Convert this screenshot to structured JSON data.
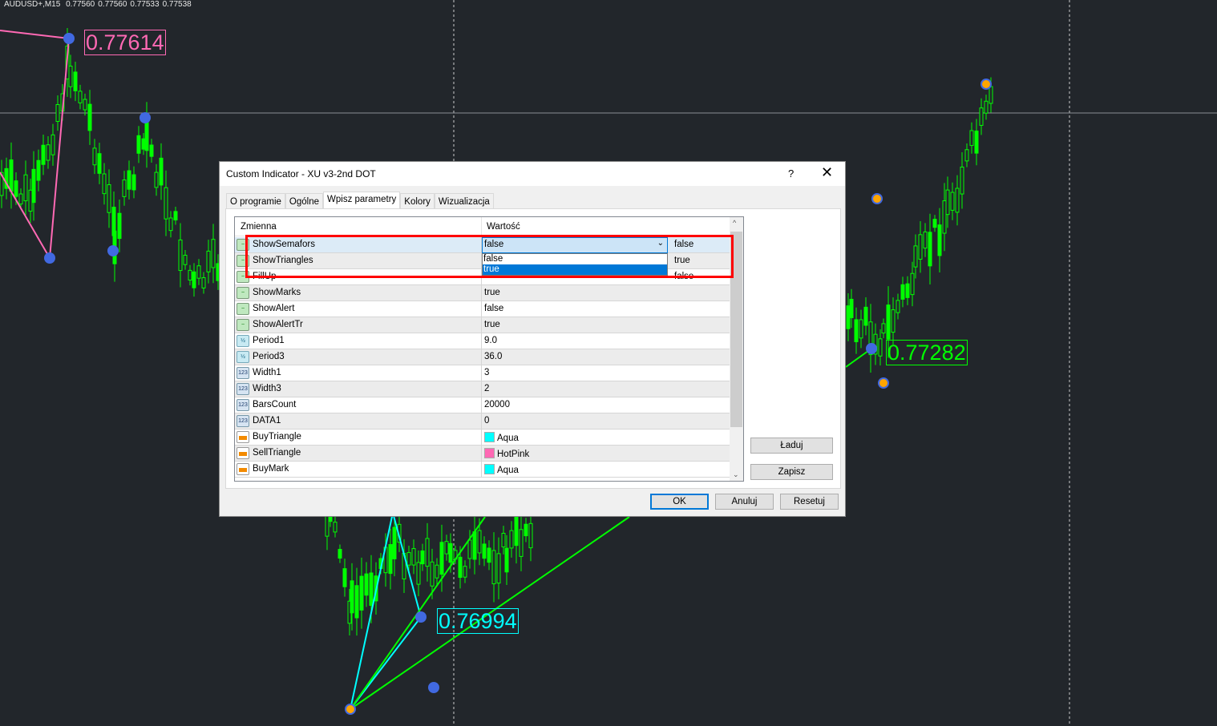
{
  "chart": {
    "symbol": "AUDUSD+,M15",
    "ohlc": [
      "0.77560",
      "0.77560",
      "0.77533",
      "0.77538"
    ],
    "price_labels": [
      {
        "text": "0.77614",
        "color": "#ff69b4"
      },
      {
        "text": "0.77282",
        "color": "#00ff00"
      },
      {
        "text": "0.76994",
        "color": "#00ffff"
      }
    ],
    "colors": {
      "background": "#22262b",
      "candle": "#00ff00",
      "sell": "#ff69b4",
      "buy": "#00ffff",
      "dot_blue": "#4169e1",
      "dot_orange": "#ffa500"
    }
  },
  "dialog": {
    "title": "Custom Indicator - XU v3-2nd DOT",
    "help": "?",
    "close": "✕",
    "tabs": [
      "O programie",
      "Ogólne",
      "Wpisz parametry",
      "Kolory",
      "Wizualizacja"
    ],
    "active_tab": "Wpisz parametry",
    "columns": [
      "Zmienna",
      "Wartość"
    ],
    "rows": [
      {
        "type": "bool",
        "name": "ShowSemafors",
        "value": "false"
      },
      {
        "type": "bool",
        "name": "ShowTriangles",
        "value": "true"
      },
      {
        "type": "bool",
        "name": "FillUp",
        "value": "false"
      },
      {
        "type": "bool",
        "name": "ShowMarks",
        "value": "true"
      },
      {
        "type": "bool",
        "name": "ShowAlert",
        "value": "false"
      },
      {
        "type": "bool",
        "name": "ShowAlertTr",
        "value": "true"
      },
      {
        "type": "double",
        "name": "Period1",
        "value": "9.0"
      },
      {
        "type": "double",
        "name": "Period3",
        "value": "36.0"
      },
      {
        "type": "int",
        "name": "Width1",
        "value": "3"
      },
      {
        "type": "int",
        "name": "Width3",
        "value": "2"
      },
      {
        "type": "int",
        "name": "BarsCount",
        "value": "20000"
      },
      {
        "type": "int",
        "name": "DATA1",
        "value": "0"
      },
      {
        "type": "color",
        "name": "BuyTriangle",
        "value": "Aqua",
        "swatch": "#00ffff"
      },
      {
        "type": "color",
        "name": "SellTriangle",
        "value": "HotPink",
        "swatch": "#ff69b4"
      },
      {
        "type": "color",
        "name": "BuyMark",
        "value": "Aqua",
        "swatch": "#00ffff"
      }
    ],
    "combo": {
      "value": "false",
      "options": [
        "false",
        "true"
      ],
      "highlighted": "true"
    },
    "buttons": {
      "load": "Ładuj",
      "save": "Zapisz",
      "ok": "OK",
      "cancel": "Anuluj",
      "reset": "Resetuj"
    }
  }
}
